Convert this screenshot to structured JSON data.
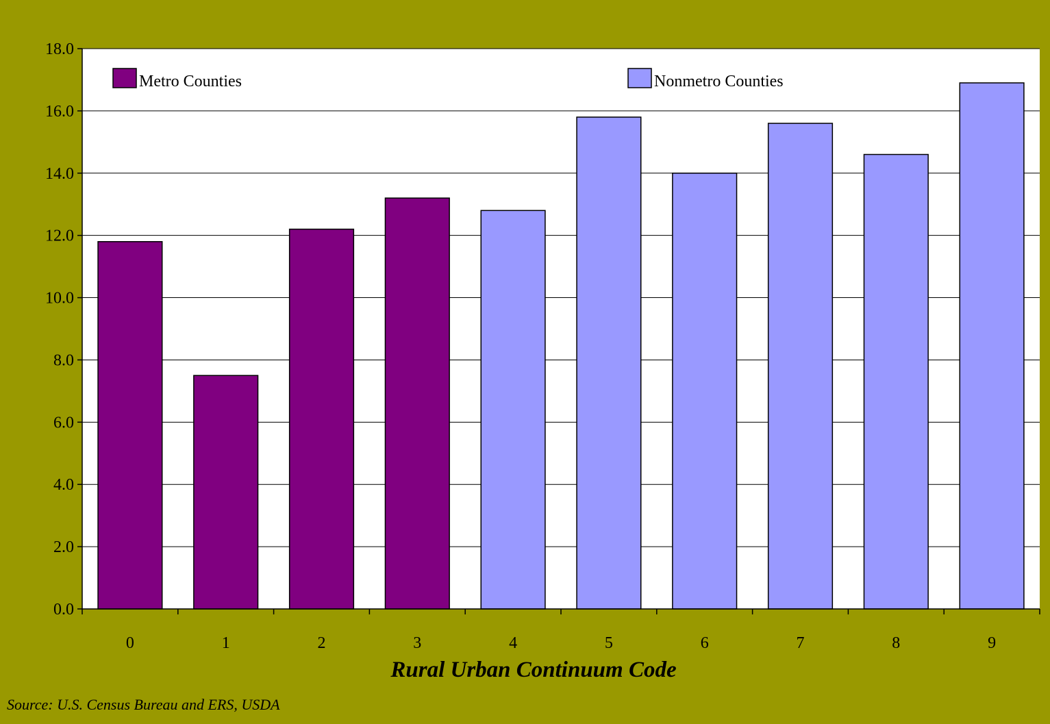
{
  "chart_data": {
    "type": "bar",
    "categories": [
      "0",
      "1",
      "2",
      "3",
      "4",
      "5",
      "6",
      "7",
      "8",
      "9"
    ],
    "series": [
      {
        "name": "Metro Counties",
        "color": "#800080",
        "values": [
          11.8,
          7.5,
          12.2,
          13.2,
          null,
          null,
          null,
          null,
          null,
          null
        ]
      },
      {
        "name": "Nonmetro Counties",
        "color": "#9999FF",
        "values": [
          null,
          null,
          null,
          null,
          12.8,
          15.8,
          14.0,
          15.6,
          14.6,
          16.9
        ]
      }
    ],
    "xlabel": "Rural Urban Continuum Code",
    "ylabel": "",
    "ylim": [
      0,
      18
    ],
    "yticks": [
      "0.0",
      "2.0",
      "4.0",
      "6.0",
      "8.0",
      "10.0",
      "12.0",
      "14.0",
      "16.0",
      "18.0"
    ],
    "grid": true,
    "legend": "top"
  },
  "source": "Source: U.S. Census Bureau and ERS, USDA"
}
